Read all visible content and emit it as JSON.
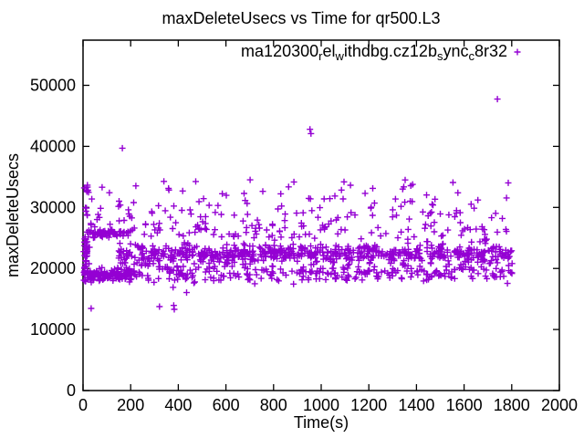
{
  "chart_data": {
    "type": "scatter",
    "title": "maxDeleteUsecs vs Time for qr500.L3",
    "xlabel": "Time(s)",
    "ylabel": "maxDeleteUsecs",
    "xlim": [
      0,
      2000
    ],
    "ylim": [
      0,
      57400
    ],
    "xticks": [
      0,
      200,
      400,
      600,
      800,
      1000,
      1200,
      1400,
      1600,
      1800,
      2000
    ],
    "yticks": [
      0,
      10000,
      20000,
      30000,
      40000,
      50000
    ],
    "grid": false,
    "point_color": "#9400D3",
    "marker": "plus",
    "legend": {
      "position": "top-right-inside",
      "label_plain": "ma120300_rel_withdbg.cz12b_sync_c8r32",
      "segments": [
        {
          "text": "ma120300",
          "sub": false
        },
        {
          "text": "r",
          "sub": true
        },
        {
          "text": "el",
          "sub": false
        },
        {
          "text": "w",
          "sub": true
        },
        {
          "text": "ithdbg.cz12b",
          "sub": false
        },
        {
          "text": "s",
          "sub": true
        },
        {
          "text": "ync",
          "sub": false
        },
        {
          "text": "c",
          "sub": true
        },
        {
          "text": "8r32",
          "sub": false
        }
      ]
    },
    "series": [
      {
        "name": "ma120300_rel_withdbg.cz12b_sync_c8r32",
        "color": "#9400D3",
        "marker": "plus",
        "x_data_range": [
          0,
          1805
        ],
        "approx_point_count": 1408
      }
    ],
    "outliers": [
      [
        34,
        13450
      ],
      [
        165,
        39700
      ],
      [
        321,
        13750
      ],
      [
        378,
        16900
      ],
      [
        381,
        13950
      ],
      [
        383,
        13300
      ],
      [
        435,
        16050
      ],
      [
        953,
        42800
      ],
      [
        957,
        42100
      ],
      [
        1740,
        47750
      ]
    ],
    "distribution_bands": [
      {
        "name": "startup-spike-column",
        "t": [
          2,
          28
        ],
        "count": 52,
        "dist": "uniform",
        "v": [
          17800,
          26600
        ]
      },
      {
        "name": "startup-mid-cluster",
        "t": [
          2,
          24
        ],
        "count": 5,
        "dist": "uniform",
        "v": [
          28600,
          30500
        ]
      },
      {
        "name": "startup-high-cluster",
        "t": [
          2,
          26
        ],
        "count": 7,
        "dist": "uniform",
        "v": [
          32200,
          34600
        ]
      },
      {
        "name": "early-plateau-26k",
        "t": [
          26,
          190
        ],
        "count": 58,
        "dist": "normal",
        "mean": 25750,
        "sd": 280,
        "clip": [
          25000,
          26600
        ]
      },
      {
        "name": "plateau-26k-tail",
        "t": [
          190,
          720
        ],
        "count": 16,
        "dist": "normal",
        "mean": 25600,
        "sd": 350,
        "clip": [
          24800,
          26400
        ]
      },
      {
        "name": "early-low-band",
        "t": [
          28,
          208
        ],
        "count": 130,
        "dist": "normal",
        "mean": 18950,
        "sd": 520,
        "clip": [
          17700,
          20400
        ]
      },
      {
        "name": "main-dense-band",
        "t": [
          150,
          1802
        ],
        "count": 620,
        "dist": "normal",
        "mean": 22350,
        "sd": 720,
        "clip": [
          20300,
          24300
        ]
      },
      {
        "name": "secondary-lower-band",
        "t": [
          205,
          1802
        ],
        "count": 285,
        "dist": "normal",
        "mean": 19400,
        "sd": 900,
        "clip": [
          17400,
          21000
        ]
      },
      {
        "name": "band-top-fringe",
        "t": [
          700,
          1802
        ],
        "count": 40,
        "dist": "uniform",
        "v": [
          24300,
          26200
        ]
      },
      {
        "name": "mid-high-scatter",
        "t": [
          30,
          1802
        ],
        "count": 185,
        "dist": "power",
        "v": [
          26300,
          34600
        ],
        "exp": 1.9
      }
    ],
    "seed": 1337
  }
}
